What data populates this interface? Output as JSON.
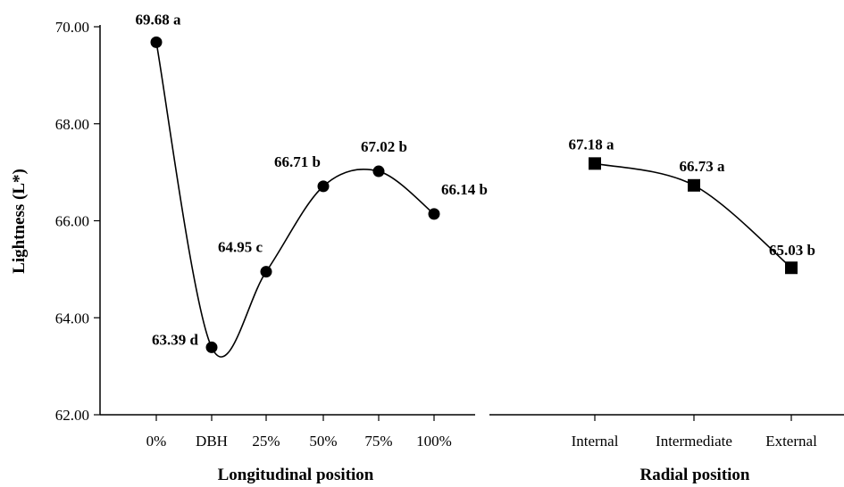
{
  "chart_data": {
    "type": "line",
    "ylabel": "Lightness (L*)",
    "ylim": [
      62,
      70
    ],
    "yticks": [
      "62.00",
      "64.00",
      "66.00",
      "68.00",
      "70.00"
    ],
    "grid": false,
    "legend": "none",
    "panels": [
      {
        "xlabel": "Longitudinal position",
        "categories": [
          "0%",
          "DBH",
          "25%",
          "50%",
          "75%",
          "100%"
        ],
        "values": [
          69.68,
          63.39,
          64.95,
          66.71,
          67.02,
          66.14
        ],
        "labels": [
          "69.68 a",
          "63.39 d",
          "64.95 c",
          "66.71 b",
          "67.02 b",
          "66.14 b"
        ],
        "marker": "circle"
      },
      {
        "xlabel": "Radial position",
        "categories": [
          "Internal",
          "Intermediate",
          "External"
        ],
        "values": [
          67.18,
          66.73,
          65.03
        ],
        "labels": [
          "67.18 a",
          "66.73 a",
          "65.03 b"
        ],
        "marker": "square"
      }
    ],
    "colors": {
      "line": "#000000",
      "marker": "#000000"
    }
  }
}
